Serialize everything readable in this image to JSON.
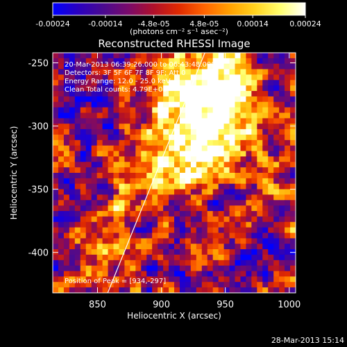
{
  "chart_data": {
    "type": "heatmap",
    "title": "Reconstructed RHESSI Image",
    "xlabel": "Heliocentric X (arcsec)",
    "ylabel": "Heliocentric Y (arcsec)",
    "xlim": [
      815,
      1005
    ],
    "ylim": [
      -432,
      -242
    ],
    "x_ticks": [
      850,
      900,
      950,
      1000
    ],
    "y_ticks": [
      -250,
      -300,
      -350,
      -400
    ],
    "colorbar": {
      "label": "(photons cm⁻² s⁻¹ asec⁻²)",
      "range": [
        -0.00024,
        0.00024
      ],
      "ticks": [
        {
          "value": -0.00024,
          "label": "-0.00024"
        },
        {
          "value": -0.00014,
          "label": "-0.00014"
        },
        {
          "value": -4.8e-05,
          "label": "-4.8e-05"
        },
        {
          "value": 4.8e-05,
          "label": "4.8e-05"
        },
        {
          "value": 0.00014,
          "label": "0.00014"
        },
        {
          "value": 0.00024,
          "label": "0.00024"
        }
      ],
      "colors": [
        "#0000ff",
        "#2a00c0",
        "#4a0a90",
        "#7a0a6a",
        "#b0102a",
        "#e02a00",
        "#ff6400",
        "#ffa000",
        "#ffd21e",
        "#ffff6e",
        "#ffffff"
      ]
    },
    "info_lines": [
      "20-Mar-2013 06:39:26.000 to 06:43:48.000",
      "Detectors: 3F 5F 6F 7F 8F 9F; Att 0",
      "Energy Range: 12.0 - 25.0 keV",
      "Clean    Total counts: 4.79E+03"
    ],
    "peak_label": "Position of Peak = [934,-297]",
    "peak": {
      "x": 934,
      "y": -297
    },
    "limb_line": [
      {
        "x": 858,
        "y": -432
      },
      {
        "x": 934,
        "y": -242
      }
    ],
    "hot_regions": [
      {
        "x": 910,
        "y": -275,
        "strength": 1.0
      },
      {
        "x": 945,
        "y": -265,
        "strength": 0.95
      },
      {
        "x": 925,
        "y": -320,
        "strength": 0.75
      },
      {
        "x": 880,
        "y": -345,
        "strength": 0.6
      },
      {
        "x": 955,
        "y": -305,
        "strength": 0.6
      },
      {
        "x": 855,
        "y": -410,
        "strength": 0.55
      },
      {
        "x": 990,
        "y": -355,
        "strength": 0.3
      }
    ],
    "timestamp": "28-Mar-2013 15:14"
  }
}
